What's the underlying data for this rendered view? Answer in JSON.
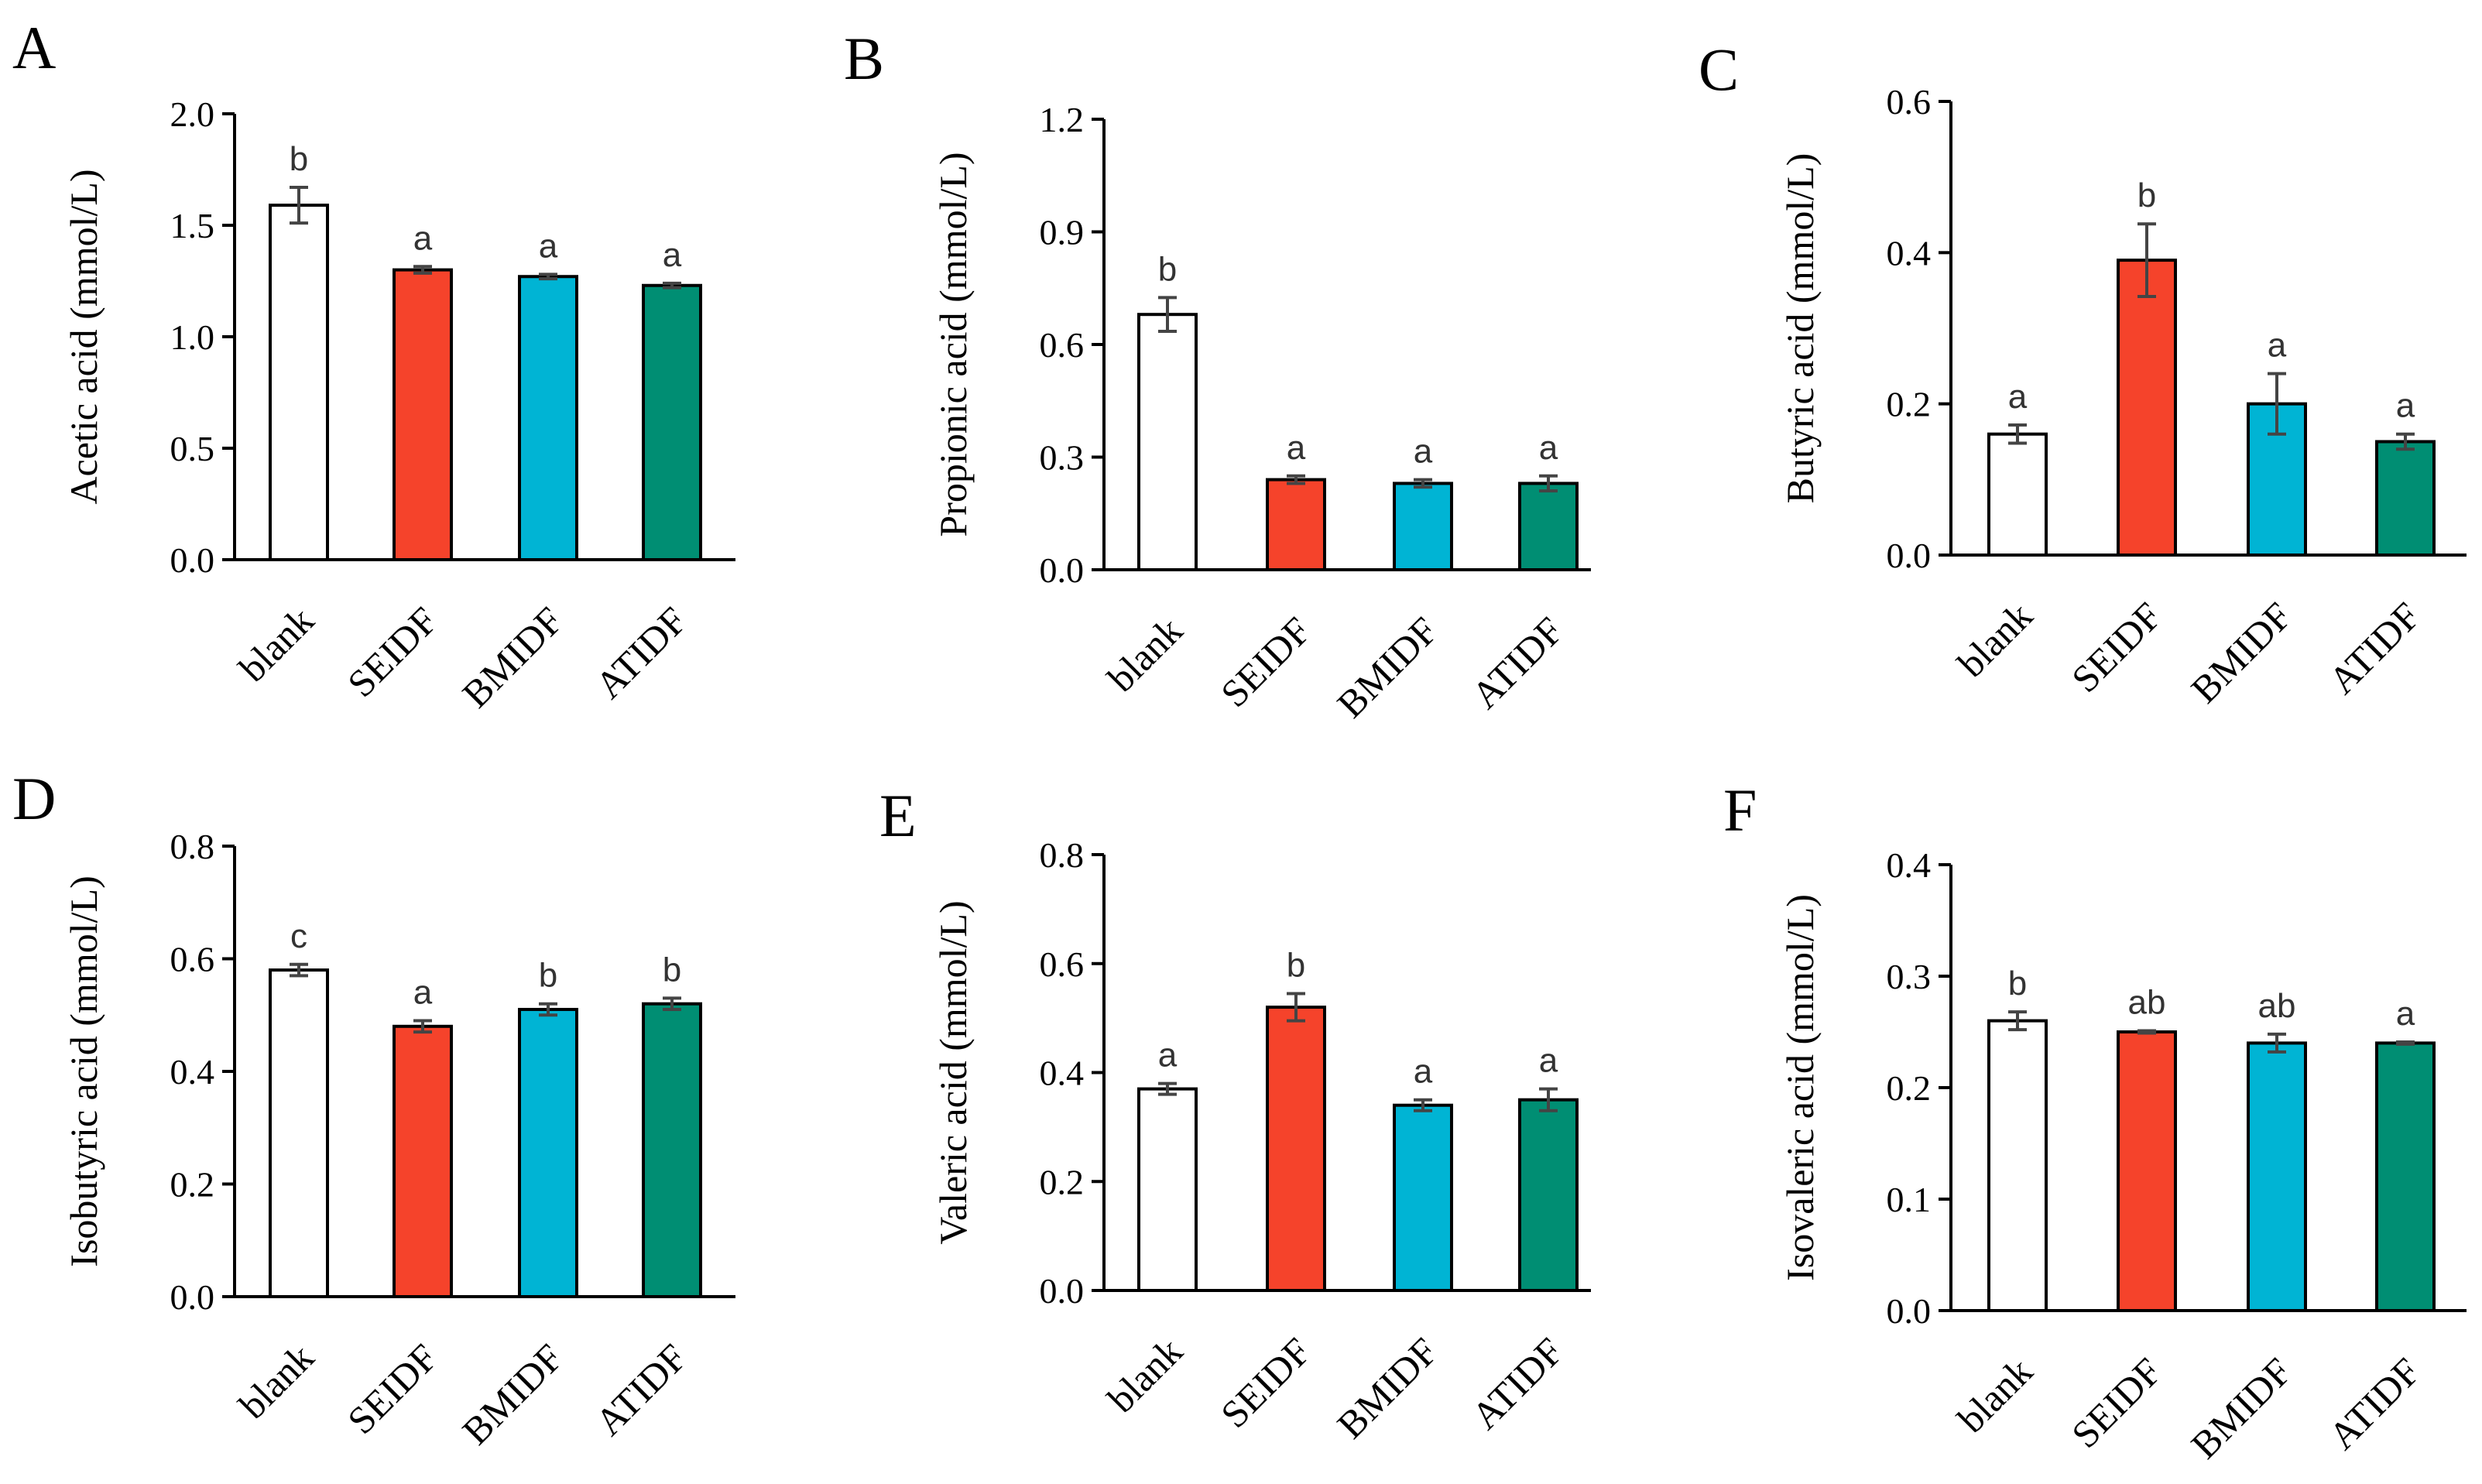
{
  "chart_data": [
    {
      "panel": "A",
      "type": "bar",
      "title": "",
      "ylabel": "Acetic acid (mmol/L)",
      "xlabel": "",
      "categories": [
        "blank",
        "SEIDF",
        "BMIDF",
        "ATIDF"
      ],
      "values": [
        1.59,
        1.3,
        1.27,
        1.23
      ],
      "errors": [
        0.08,
        0.015,
        0.01,
        0.01
      ],
      "significance": [
        "b",
        "a",
        "a",
        "a"
      ],
      "ylim": [
        0,
        2.0
      ],
      "yticks": [
        "0.0",
        "0.5",
        "1.0",
        "1.5",
        "2.0"
      ],
      "colors": [
        "#ffffff",
        "#f5432b",
        "#00b4d4",
        "#008e73"
      ]
    },
    {
      "panel": "B",
      "type": "bar",
      "title": "",
      "ylabel": "Propionic acid (mmol/L)",
      "xlabel": "",
      "categories": [
        "blank",
        "SEIDF",
        "BMIDF",
        "ATIDF"
      ],
      "values": [
        0.68,
        0.24,
        0.23,
        0.23
      ],
      "errors": [
        0.045,
        0.01,
        0.01,
        0.02
      ],
      "significance": [
        "b",
        "a",
        "a",
        "a"
      ],
      "ylim": [
        0,
        1.2
      ],
      "yticks": [
        "0.0",
        "0.3",
        "0.6",
        "0.9",
        "1.2"
      ],
      "colors": [
        "#ffffff",
        "#f5432b",
        "#00b4d4",
        "#008e73"
      ]
    },
    {
      "panel": "C",
      "type": "bar",
      "title": "",
      "ylabel": "Butyric acid (mmol/L)",
      "xlabel": "",
      "categories": [
        "blank",
        "SEIDF",
        "BMIDF",
        "ATIDF"
      ],
      "values": [
        0.16,
        0.39,
        0.2,
        0.15
      ],
      "errors": [
        0.012,
        0.048,
        0.04,
        0.01
      ],
      "significance": [
        "a",
        "b",
        "a",
        "a"
      ],
      "ylim": [
        0,
        0.6
      ],
      "yticks": [
        "0.0",
        "0.2",
        "0.4",
        "0.6"
      ],
      "colors": [
        "#ffffff",
        "#f5432b",
        "#00b4d4",
        "#008e73"
      ]
    },
    {
      "panel": "D",
      "type": "bar",
      "title": "",
      "ylabel": "Isobutyric acid (mmol/L)",
      "xlabel": "",
      "categories": [
        "blank",
        "SEIDF",
        "BMIDF",
        "ATIDF"
      ],
      "values": [
        0.58,
        0.48,
        0.51,
        0.52
      ],
      "errors": [
        0.01,
        0.01,
        0.01,
        0.01
      ],
      "significance": [
        "c",
        "a",
        "b",
        "b"
      ],
      "ylim": [
        0,
        0.8
      ],
      "yticks": [
        "0.0",
        "0.2",
        "0.4",
        "0.6",
        "0.8"
      ],
      "colors": [
        "#ffffff",
        "#f5432b",
        "#00b4d4",
        "#008e73"
      ]
    },
    {
      "panel": "E",
      "type": "bar",
      "title": "",
      "ylabel": "Valeric acid (mmol/L)",
      "xlabel": "",
      "categories": [
        "blank",
        "SEIDF",
        "BMIDF",
        "ATIDF"
      ],
      "values": [
        0.37,
        0.52,
        0.34,
        0.35
      ],
      "errors": [
        0.01,
        0.025,
        0.01,
        0.02
      ],
      "significance": [
        "a",
        "b",
        "a",
        "a"
      ],
      "ylim": [
        0,
        0.8
      ],
      "yticks": [
        "0.0",
        "0.2",
        "0.4",
        "0.6",
        "0.8"
      ],
      "colors": [
        "#ffffff",
        "#f5432b",
        "#00b4d4",
        "#008e73"
      ]
    },
    {
      "panel": "F",
      "type": "bar",
      "title": "",
      "ylabel": "Isovaleric acid (mmol/L)",
      "xlabel": "",
      "categories": [
        "blank",
        "SEIDF",
        "BMIDF",
        "ATIDF"
      ],
      "values": [
        0.26,
        0.25,
        0.24,
        0.24
      ],
      "errors": [
        0.008,
        0.001,
        0.008,
        0.001
      ],
      "significance": [
        "b",
        "ab",
        "ab",
        "a"
      ],
      "ylim": [
        0,
        0.4
      ],
      "yticks": [
        "0.0",
        "0.1",
        "0.2",
        "0.3",
        "0.4"
      ],
      "colors": [
        "#ffffff",
        "#f5432b",
        "#00b4d4",
        "#008e73"
      ]
    }
  ]
}
